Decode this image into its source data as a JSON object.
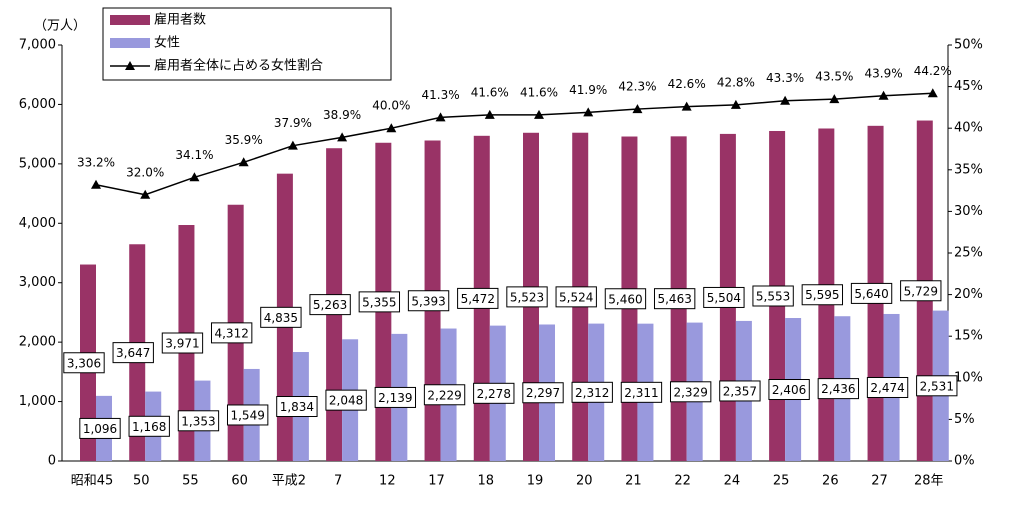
{
  "chart_data": {
    "type": "bar",
    "y_label": "（万人）",
    "categories": [
      "昭和45",
      "50",
      "55",
      "60",
      "平成2",
      "7",
      "12",
      "17",
      "18",
      "19",
      "20",
      "21",
      "22",
      "24",
      "25",
      "26",
      "27",
      "28年"
    ],
    "series": [
      {
        "name": "雇用者数",
        "color": "#993366",
        "values": [
          3306,
          3647,
          3971,
          4312,
          4835,
          5263,
          5355,
          5393,
          5472,
          5523,
          5524,
          5460,
          5463,
          5504,
          5553,
          5595,
          5640,
          5729
        ],
        "value_labels": [
          "3,306",
          "3,647",
          "3,971",
          "4,312",
          "4,835",
          "5,263",
          "5,355",
          "5,393",
          "5,472",
          "5,523",
          "5,524",
          "5,460",
          "5,463",
          "5,504",
          "5,553",
          "5,595",
          "5,640",
          "5,729"
        ]
      },
      {
        "name": "女性",
        "color": "#9999dd",
        "values": [
          1096,
          1168,
          1353,
          1549,
          1834,
          2048,
          2139,
          2229,
          2278,
          2297,
          2312,
          2311,
          2329,
          2357,
          2406,
          2436,
          2474,
          2531
        ],
        "value_labels": [
          "1,096",
          "1,168",
          "1,353",
          "1,549",
          "1,834",
          "2,048",
          "2,139",
          "2,229",
          "2,278",
          "2,297",
          "2,312",
          "2,311",
          "2,329",
          "2,357",
          "2,406",
          "2,436",
          "2,474",
          "2,531"
        ]
      },
      {
        "name": "雇用者全体に占める女性割合",
        "color": "#000000",
        "type": "line",
        "axis": "y2",
        "values": [
          33.2,
          32.0,
          34.1,
          35.9,
          37.9,
          38.9,
          40.0,
          41.3,
          41.6,
          41.6,
          41.9,
          42.3,
          42.6,
          42.8,
          43.3,
          43.5,
          43.9,
          44.2
        ],
        "value_labels": [
          "33.2%",
          "32.0%",
          "34.1%",
          "35.9%",
          "37.9%",
          "38.9%",
          "40.0%",
          "41.3%",
          "41.6%",
          "41.6%",
          "41.9%",
          "42.3%",
          "42.6%",
          "42.8%",
          "43.3%",
          "43.5%",
          "43.9%",
          "44.2%"
        ]
      }
    ],
    "ylim": [
      0,
      7000
    ],
    "yticks": [
      0,
      {
        "value": 1000,
        "label": "1,000"
      },
      {
        "value": 2000,
        "label": "2,000"
      },
      {
        "value": 3000,
        "label": "3,000"
      },
      {
        "value": 4000,
        "label": "4,000"
      },
      {
        "value": 5000,
        "label": "5,000"
      },
      {
        "value": 6000,
        "label": "6,000"
      },
      {
        "value": 7000,
        "label": "7,000"
      }
    ],
    "y2lim": [
      0,
      50
    ],
    "y2ticks": [
      {
        "value": 0,
        "label": "0%"
      },
      {
        "value": 5,
        "label": "5%"
      },
      {
        "value": 10,
        "label": "10%"
      },
      {
        "value": 15,
        "label": "15%"
      },
      {
        "value": 20,
        "label": "20%"
      },
      {
        "value": 25,
        "label": "25%"
      },
      {
        "value": 30,
        "label": "30%"
      },
      {
        "value": 35,
        "label": "35%"
      },
      {
        "value": 40,
        "label": "40%"
      },
      {
        "value": 45,
        "label": "45%"
      },
      {
        "value": 50,
        "label": "50%"
      }
    ],
    "legend": "top-left"
  }
}
